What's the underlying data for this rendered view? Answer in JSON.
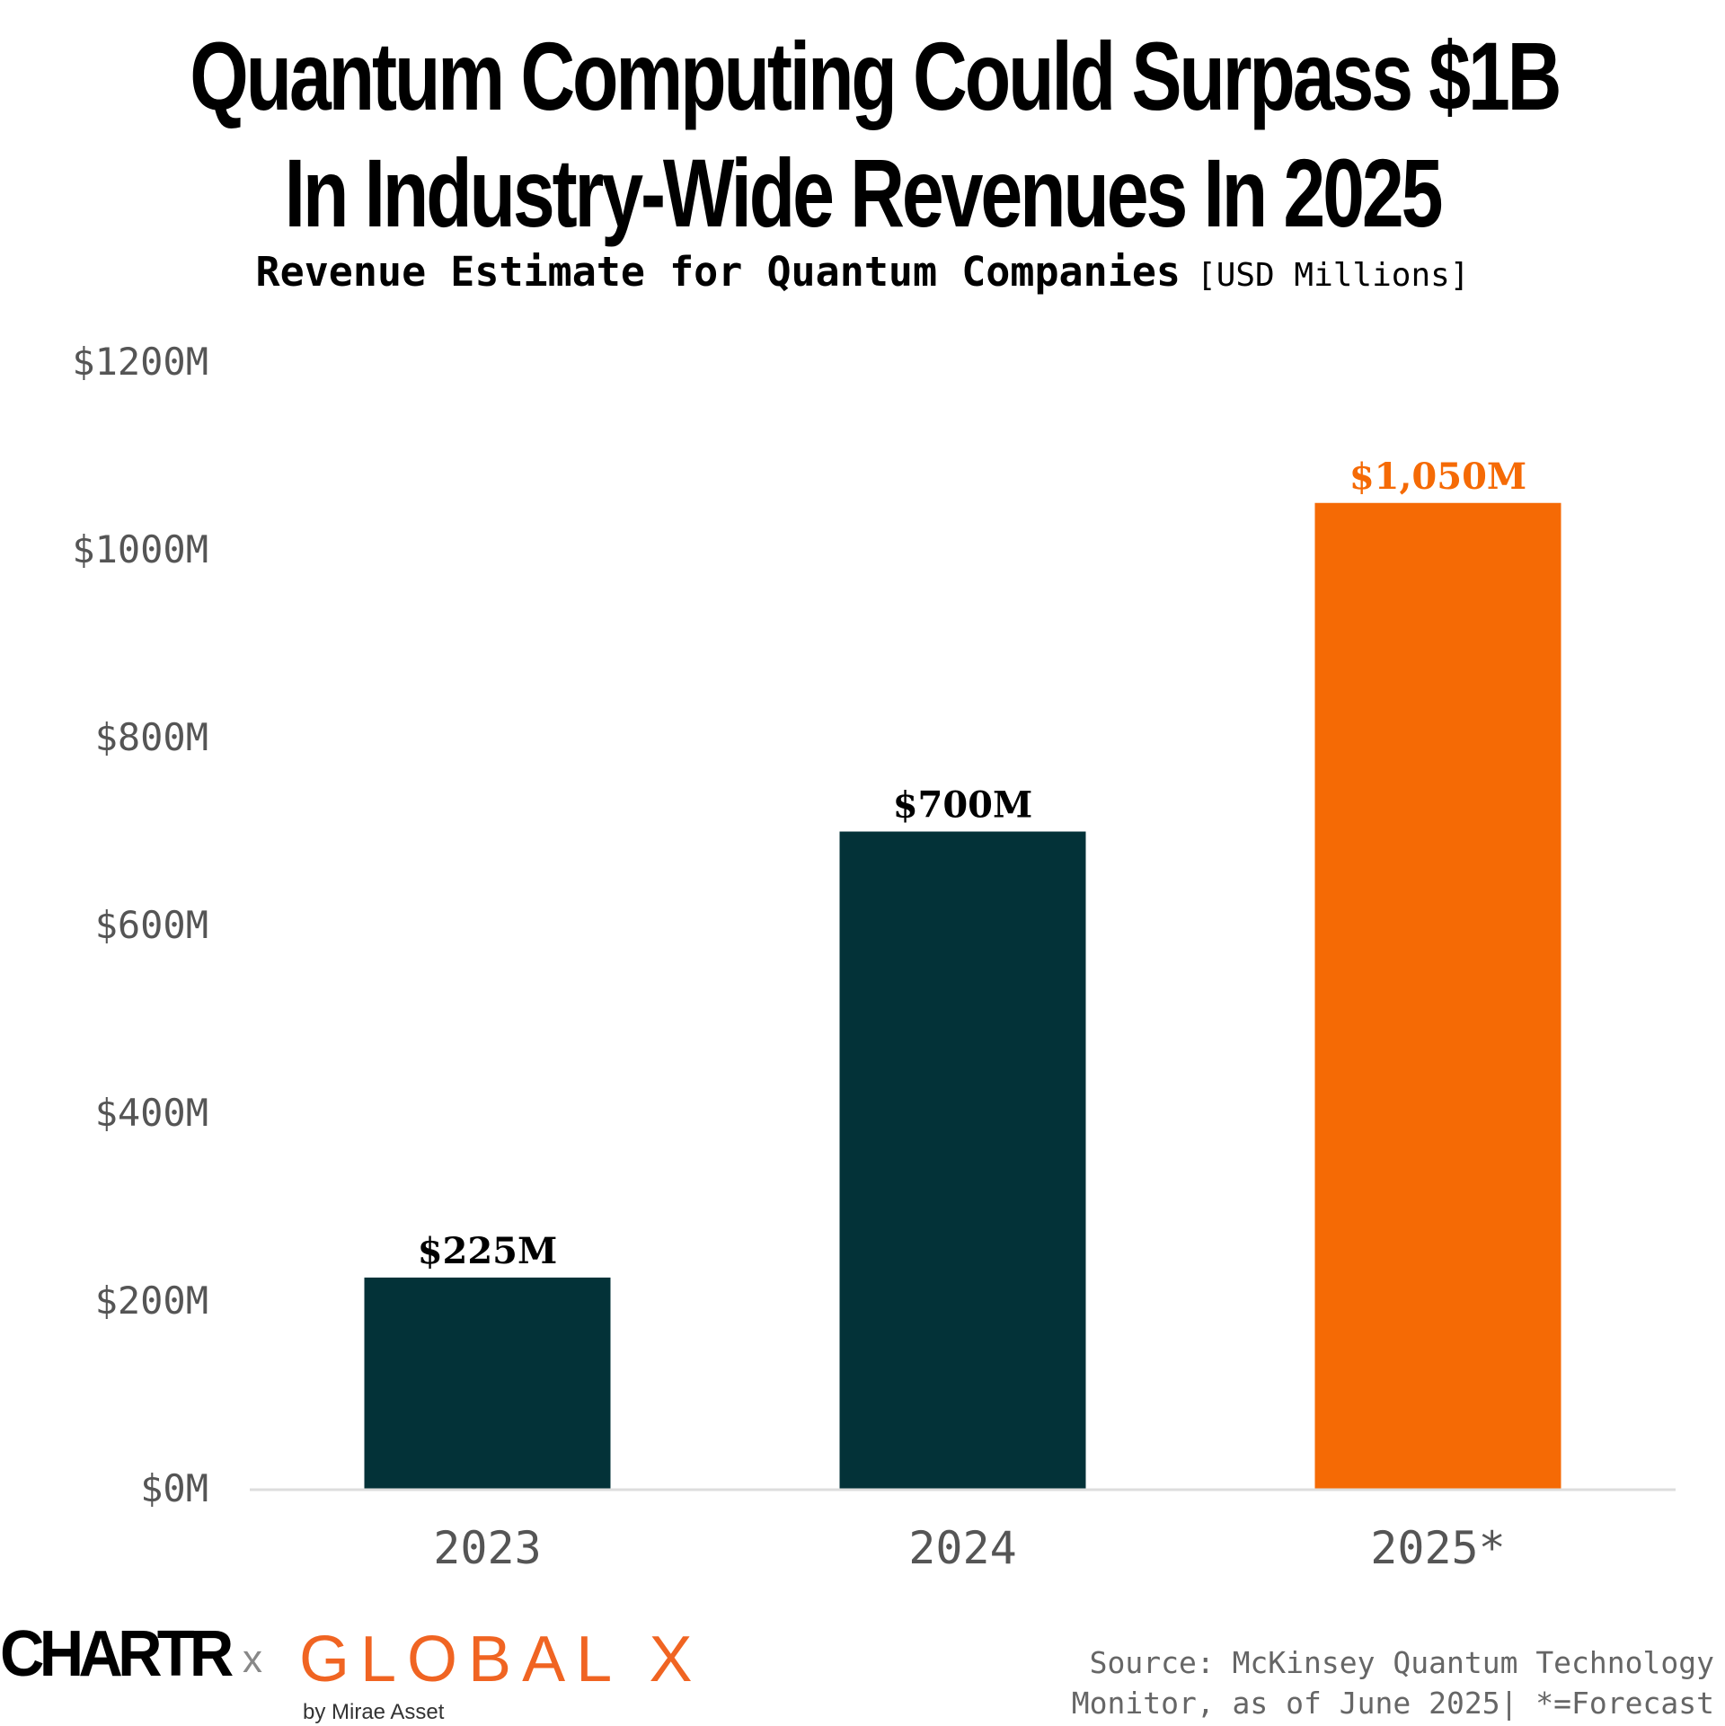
{
  "title_line1": "Quantum Computing Could Surpass $1B",
  "title_line2": "In Industry-Wide Revenues In 2025",
  "subtitle": "Revenue Estimate for Quantum Companies",
  "unit_label": "[USD Millions]",
  "logos": {
    "chartr": "CHARTR",
    "separator": "x",
    "globalx": "GLOBAL X",
    "globalx_sub": "by Mirae Asset"
  },
  "source_line1": "Source: McKinsey Quantum Technology",
  "source_line2": "Monitor, as of June 2025| *=Forecast",
  "colors": {
    "actual": "#033238",
    "forecast": "#f56a05",
    "axis": "#dddddd",
    "tick_text": "#555555"
  },
  "chart_data": {
    "type": "bar",
    "categories": [
      "2023",
      "2024",
      "2025*"
    ],
    "values": [
      225,
      700,
      1050
    ],
    "data_labels": [
      "$225M",
      "$700M",
      "$1,050M"
    ],
    "forecast_index": 2,
    "ylim": [
      0,
      1200
    ],
    "yticks": [
      0,
      200,
      400,
      600,
      800,
      1000,
      1200
    ],
    "ytick_labels": [
      "$0M",
      "$200M",
      "$400M",
      "$600M",
      "$800M",
      "$1000M",
      "$1200M"
    ],
    "grid": false
  }
}
